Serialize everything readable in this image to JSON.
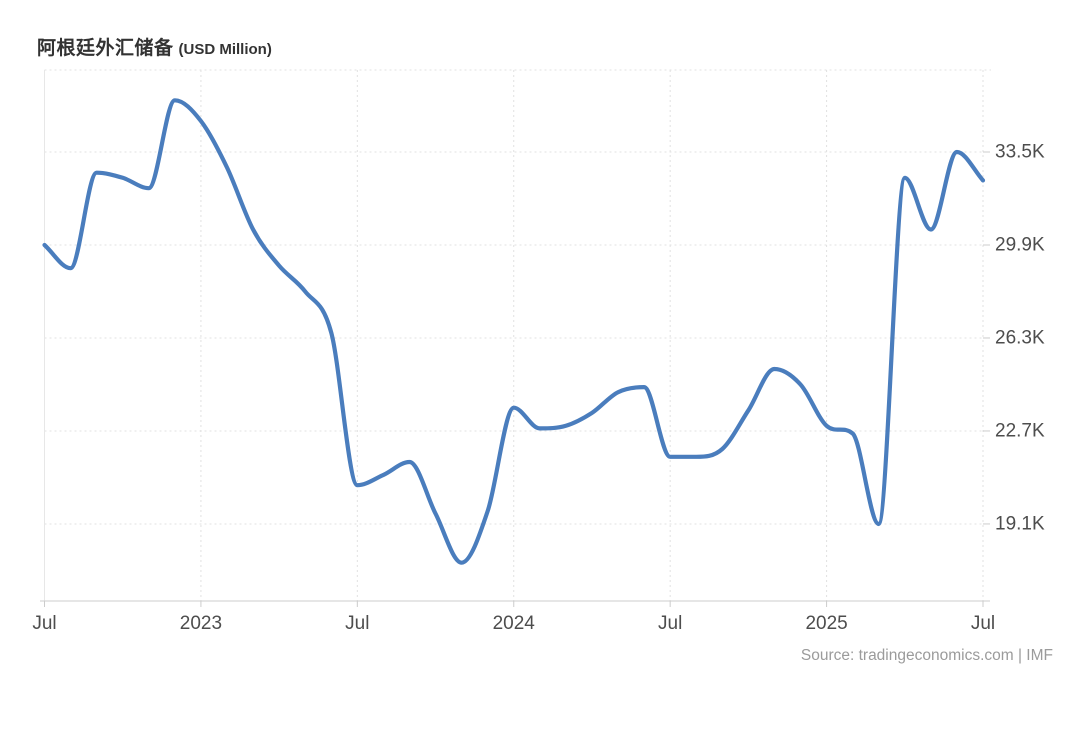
{
  "title": {
    "main": "阿根廷外汇储备",
    "suffix": "(USD Million)"
  },
  "source": "Source: tradingeconomics.com | IMF",
  "colors": {
    "line": "#4a7dbd",
    "grid": "#e1e1e1",
    "axis": "#cccccc",
    "plot_left_border": "#e7e7e7",
    "axis_label": "#4d4d4d",
    "title": "#333333",
    "source": "#9b9b9b",
    "background": "#ffffff"
  },
  "chart_data": {
    "type": "line",
    "title": "阿根廷外汇储备 (USD Million)",
    "ylabel": "",
    "xlabel": "",
    "unit": "USD Million",
    "series_name": "Argentina Foreign Exchange Reserves",
    "smoothing": "spline",
    "legend": false,
    "grid": "dotted",
    "ylim_display": [
      16100,
      36700
    ],
    "x": [
      "2022-07",
      "2022-08",
      "2022-09",
      "2022-10",
      "2022-11",
      "2022-12",
      "2023-01",
      "2023-02",
      "2023-03",
      "2023-04",
      "2023-05",
      "2023-06",
      "2023-07",
      "2023-08",
      "2023-09",
      "2023-10",
      "2023-11",
      "2023-12",
      "2024-01",
      "2024-02",
      "2024-03",
      "2024-04",
      "2024-05",
      "2024-06",
      "2024-07",
      "2024-08",
      "2024-09",
      "2024-10",
      "2024-11",
      "2024-12",
      "2025-01",
      "2025-02",
      "2025-03",
      "2025-04",
      "2025-05",
      "2025-06",
      "2025-07"
    ],
    "values": [
      29900,
      29000,
      32700,
      32500,
      32100,
      35500,
      34700,
      32900,
      30500,
      29100,
      28100,
      26500,
      20600,
      21000,
      21500,
      19500,
      17600,
      19600,
      23600,
      22800,
      22900,
      23400,
      24200,
      24400,
      21700,
      21700,
      22000,
      23500,
      25100,
      24500,
      22900,
      22600,
      19100,
      32500,
      30500,
      33500,
      32400
    ],
    "x_ticks": [
      {
        "index": 0,
        "label": "Jul"
      },
      {
        "index": 6,
        "label": "2023"
      },
      {
        "index": 12,
        "label": "Jul"
      },
      {
        "index": 18,
        "label": "2024"
      },
      {
        "index": 24,
        "label": "Jul"
      },
      {
        "index": 30,
        "label": "2025"
      },
      {
        "index": 36,
        "label": "Jul"
      }
    ],
    "y_ticks": [
      {
        "value": 33500,
        "label": "33.5K"
      },
      {
        "value": 29900,
        "label": "29.9K"
      },
      {
        "value": 26300,
        "label": "26.3K"
      },
      {
        "value": 22700,
        "label": "22.7K"
      },
      {
        "value": 19100,
        "label": "19.1K"
      }
    ]
  }
}
